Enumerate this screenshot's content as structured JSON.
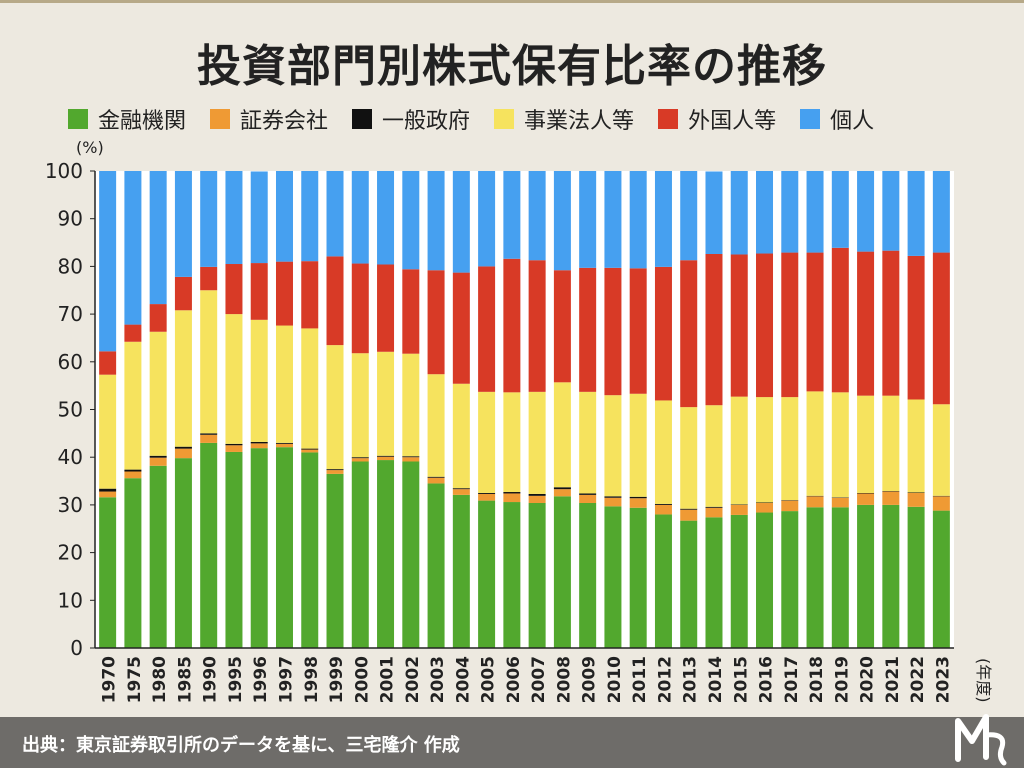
{
  "title": "投資部門別株式保有比率の推移",
  "legend": [
    {
      "label": "金融機関"
    },
    {
      "label": "証券会社"
    },
    {
      "label": "一般政府"
    },
    {
      "label": "事業法人等"
    },
    {
      "label": "外国人等"
    },
    {
      "label": "個人"
    }
  ],
  "colors": [
    "#52a82e",
    "#ef9a34",
    "#111111",
    "#f6e35e",
    "#d83a26",
    "#46a0f0"
  ],
  "source": "出典：東京証券取引所のデータを基に、三宅隆介 作成",
  "chart_data": {
    "type": "bar",
    "stacked": true,
    "y_unit": "(%)",
    "x_unit": "(年度)",
    "ylim": [
      0,
      100
    ],
    "yticks": [
      "0",
      "10",
      "20",
      "30",
      "40",
      "50",
      "60",
      "70",
      "80",
      "90",
      "100"
    ],
    "categories": [
      "1970",
      "1975",
      "1980",
      "1985",
      "1990",
      "1995",
      "1996",
      "1997",
      "1998",
      "1999",
      "2000",
      "2001",
      "2002",
      "2003",
      "2004",
      "2005",
      "2006",
      "2007",
      "2008",
      "2009",
      "2010",
      "2011",
      "2012",
      "2013",
      "2014",
      "2015",
      "2016",
      "2017",
      "2018",
      "2019",
      "2020",
      "2021",
      "2022",
      "2023"
    ],
    "series": [
      {
        "name": "金融機関",
        "values": [
          31.6,
          35.6,
          38.2,
          39.8,
          43.0,
          41.1,
          41.9,
          42.1,
          41.0,
          36.5,
          39.1,
          39.4,
          39.1,
          34.5,
          32.1,
          30.9,
          30.6,
          30.4,
          31.8,
          30.4,
          29.7,
          29.4,
          28.0,
          26.7,
          27.4,
          27.9,
          28.4,
          28.7,
          29.5,
          29.5,
          30.0,
          30.0,
          29.6,
          28.8
        ]
      },
      {
        "name": "証券会社",
        "values": [
          1.2,
          1.4,
          1.7,
          2.0,
          1.7,
          1.4,
          1.0,
          0.7,
          0.6,
          0.8,
          0.7,
          0.7,
          0.9,
          1.2,
          1.2,
          1.4,
          1.8,
          1.5,
          1.5,
          1.7,
          1.8,
          2.0,
          2.0,
          2.3,
          2.0,
          2.1,
          2.0,
          2.2,
          2.3,
          2.0,
          2.4,
          2.8,
          2.9,
          3.0
        ]
      },
      {
        "name": "一般政府",
        "values": [
          0.6,
          0.4,
          0.4,
          0.4,
          0.3,
          0.3,
          0.3,
          0.2,
          0.2,
          0.2,
          0.2,
          0.2,
          0.2,
          0.2,
          0.2,
          0.2,
          0.3,
          0.4,
          0.4,
          0.3,
          0.3,
          0.3,
          0.2,
          0.2,
          0.2,
          0.1,
          0.1,
          0.1,
          0.1,
          0.1,
          0.1,
          0.1,
          0.1,
          0.1
        ]
      },
      {
        "name": "事業法人等",
        "values": [
          23.9,
          26.8,
          26.0,
          28.6,
          30.0,
          27.2,
          25.6,
          24.6,
          25.2,
          26.0,
          21.8,
          21.8,
          21.5,
          21.5,
          21.9,
          21.2,
          20.9,
          21.4,
          22.0,
          21.3,
          21.2,
          21.6,
          21.7,
          21.3,
          21.3,
          22.6,
          22.1,
          21.6,
          21.9,
          22.0,
          20.4,
          20.0,
          19.5,
          19.2
        ]
      },
      {
        "name": "外国人等",
        "values": [
          4.9,
          3.6,
          5.8,
          7.0,
          4.9,
          10.5,
          11.9,
          13.4,
          14.1,
          18.6,
          18.8,
          18.3,
          17.7,
          21.8,
          23.3,
          26.3,
          28.0,
          27.6,
          23.5,
          26.0,
          26.7,
          26.3,
          28.0,
          30.8,
          31.7,
          29.8,
          30.1,
          30.3,
          29.1,
          30.3,
          30.2,
          30.4,
          30.1,
          31.8
        ]
      },
      {
        "name": "個人",
        "values": [
          37.8,
          32.2,
          27.9,
          22.2,
          20.1,
          19.5,
          19.2,
          19.0,
          18.9,
          17.9,
          19.4,
          19.6,
          20.6,
          20.8,
          21.3,
          20.0,
          18.4,
          18.7,
          20.8,
          20.3,
          20.3,
          20.4,
          20.1,
          18.7,
          17.3,
          17.5,
          17.3,
          17.1,
          17.1,
          16.1,
          16.9,
          16.7,
          17.8,
          17.1
        ]
      }
    ]
  }
}
